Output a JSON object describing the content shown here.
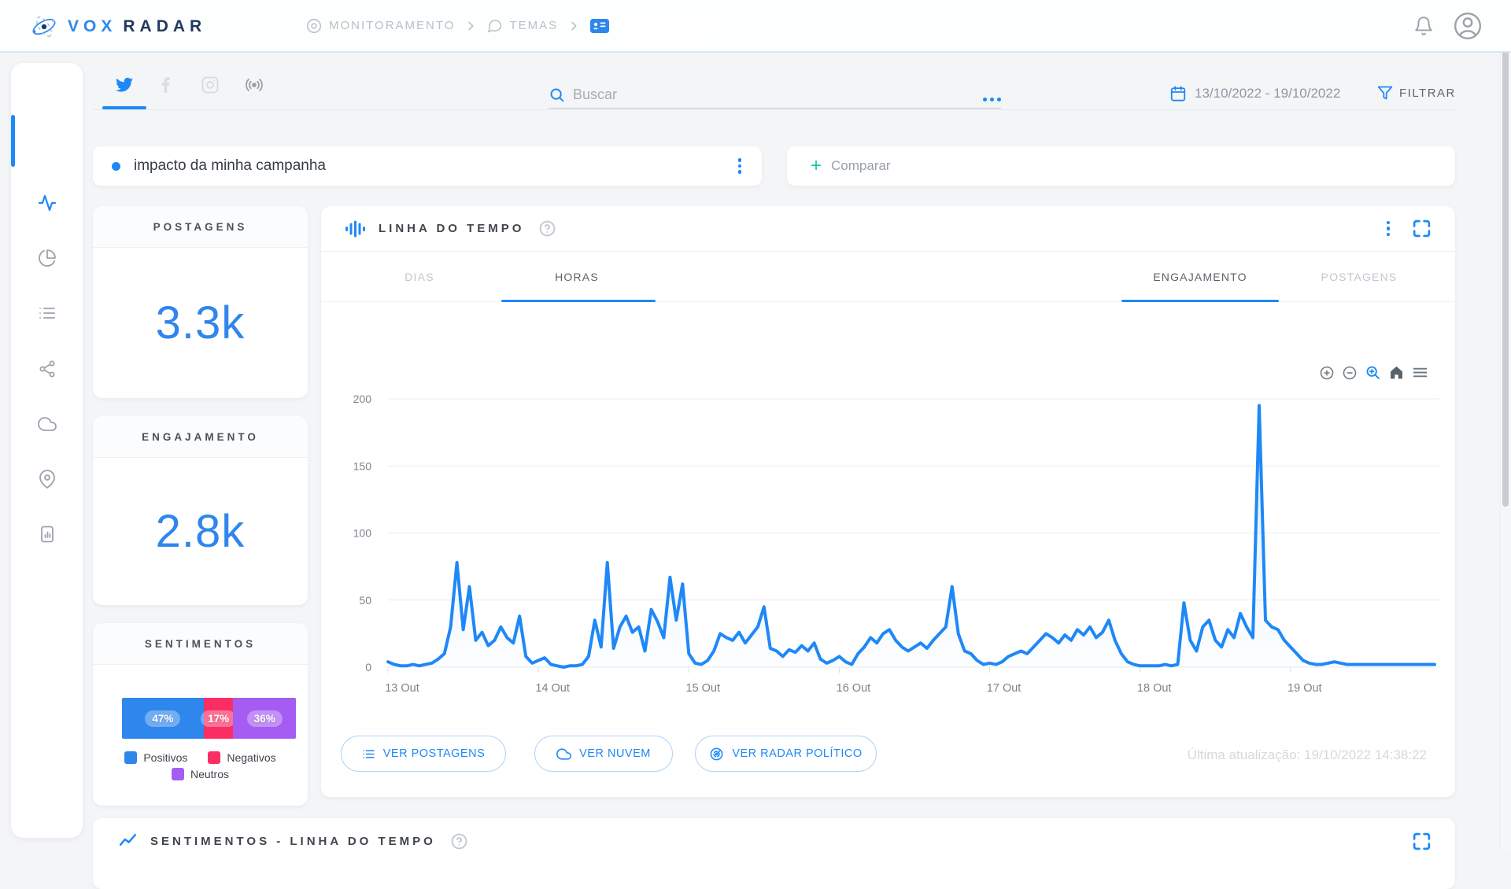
{
  "brand": {
    "part1": "VOX",
    "part2": "RADAR"
  },
  "header": {
    "breadcrumb": [
      {
        "label": "MONITORAMENTO"
      },
      {
        "label": "TEMAS"
      }
    ]
  },
  "filters": {
    "search_placeholder": "Buscar",
    "date_range": "13/10/2022 - 19/10/2022",
    "filter_label": "FILTRAR"
  },
  "campaign": {
    "name": "impacto da minha campanha",
    "compare_plus": "+",
    "compare_label": "Comparar"
  },
  "cards": {
    "postagens": {
      "title": "POSTAGENS",
      "value": "3.3k"
    },
    "engajamento": {
      "title": "ENGAJAMENTO",
      "value": "2.8k"
    },
    "sentimentos": {
      "title": "SENTIMENTOS"
    }
  },
  "sentiment_chart": {
    "type": "stacked-bar",
    "segments": [
      {
        "label": "Positivos",
        "value": 47,
        "display": "47%",
        "color": "#2f86ec"
      },
      {
        "label": "Negativos",
        "value": 17,
        "display": "17%",
        "color": "#fb2e63"
      },
      {
        "label": "Neutros",
        "value": 36,
        "display": "36%",
        "color": "#a55cf3"
      }
    ]
  },
  "timeline": {
    "title": "LINHA DO TEMPO",
    "tabs_time": [
      {
        "label": "DIAS",
        "active": false
      },
      {
        "label": "HORAS",
        "active": true
      }
    ],
    "tabs_metric": [
      {
        "label": "ENGAJAMENTO",
        "active": true
      },
      {
        "label": "POSTAGENS",
        "active": false
      }
    ],
    "actions": [
      {
        "label": "VER POSTAGENS",
        "icon": "list"
      },
      {
        "label": "VER NUVEM",
        "icon": "cloud"
      },
      {
        "label": "VER RADAR POLÍTICO",
        "icon": "radar"
      }
    ],
    "last_update": "Última atualização: 19/10/2022 14:38:22"
  },
  "chart_data": {
    "type": "area",
    "title": "Linha do tempo - engajamento por hora",
    "legend_position": "none",
    "grid": true,
    "x_unit": "hour",
    "categories": [
      "13 Out",
      "14 Out",
      "15 Out",
      "16 Out",
      "17 Out",
      "18 Out",
      "19 Out"
    ],
    "ylim": [
      0,
      200
    ],
    "yticks": [
      0,
      50,
      100,
      150,
      200
    ],
    "line_color": "#1e88f7",
    "values": [
      4,
      2,
      1,
      1,
      2,
      1,
      2,
      3,
      6,
      10,
      30,
      78,
      28,
      60,
      20,
      26,
      16,
      20,
      30,
      22,
      18,
      38,
      8,
      3,
      5,
      7,
      2,
      1,
      0,
      1,
      1,
      2,
      8,
      35,
      15,
      78,
      14,
      30,
      38,
      26,
      30,
      12,
      43,
      34,
      22,
      67,
      35,
      62,
      10,
      3,
      2,
      5,
      12,
      25,
      22,
      20,
      26,
      18,
      24,
      30,
      45,
      14,
      12,
      8,
      13,
      11,
      16,
      12,
      18,
      6,
      3,
      5,
      8,
      4,
      2,
      10,
      15,
      22,
      18,
      25,
      28,
      20,
      15,
      12,
      15,
      18,
      14,
      20,
      25,
      30,
      60,
      25,
      12,
      10,
      5,
      2,
      3,
      2,
      4,
      8,
      10,
      12,
      10,
      15,
      20,
      25,
      22,
      18,
      24,
      20,
      28,
      24,
      30,
      22,
      26,
      35,
      20,
      10,
      4,
      2,
      1,
      1,
      1,
      1,
      2,
      1,
      2,
      48,
      20,
      12,
      30,
      35,
      20,
      15,
      28,
      22,
      40,
      30,
      22,
      195,
      35,
      30,
      28,
      20,
      15,
      10,
      5,
      3,
      2,
      2,
      3,
      4,
      3,
      2,
      2,
      2,
      2,
      2,
      2,
      2,
      2,
      2,
      2,
      2,
      2,
      2,
      2,
      2
    ]
  },
  "bottom_panel": {
    "title": "SENTIMENTOS - LINHA DO TEMPO"
  },
  "icons": {
    "logo": "atom-orbits",
    "breadcrumb": [
      "target",
      "speech-bubble",
      "id-card"
    ],
    "top_right": [
      "bell",
      "user-circle"
    ],
    "sidebar": [
      "activity",
      "pie-chart",
      "list",
      "share-nodes",
      "cloud",
      "map-pin",
      "file-chart"
    ],
    "sources": [
      "twitter",
      "facebook",
      "instagram",
      "broadcast"
    ],
    "chart_toolbar": [
      "zoom-in",
      "zoom-out",
      "selection-zoom",
      "home",
      "menu"
    ]
  }
}
